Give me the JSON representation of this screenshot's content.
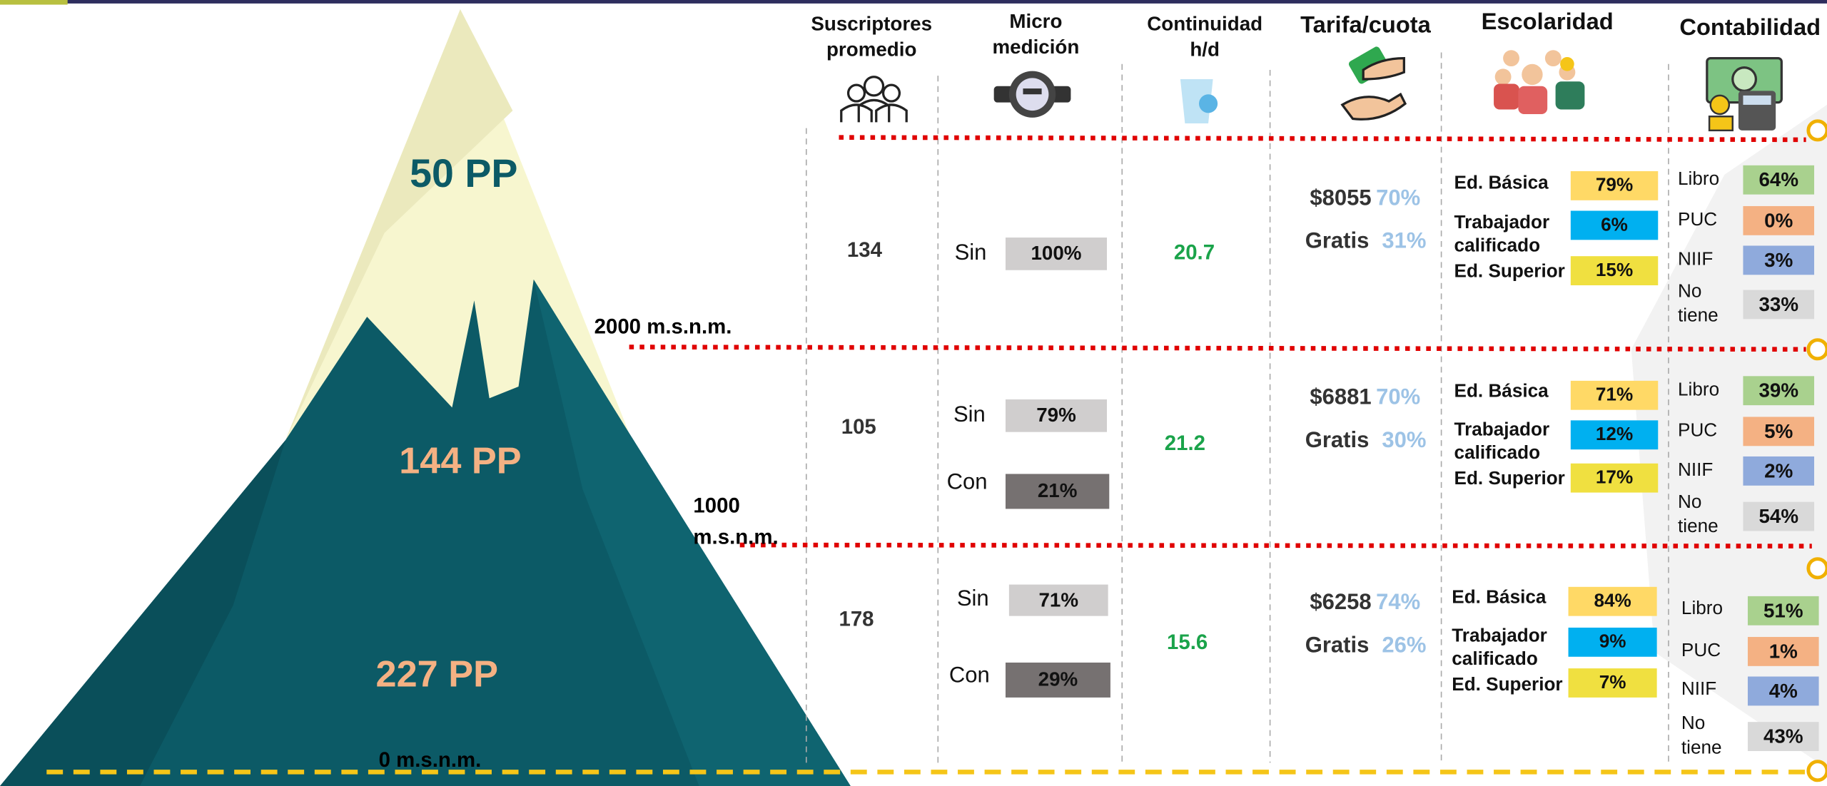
{
  "headers": [
    "Suscriptores promedio",
    "Micro medición",
    "Continuidad h/d",
    "Tarifa/cuota",
    "Escolaridad",
    "Contabilidad"
  ],
  "mountain": {
    "levels": [
      "50 PP",
      "144 PP",
      "227 PP"
    ],
    "altitudes": [
      "2000 m.s.n.m.",
      "1000 m.s.n.m.",
      "0 m.s.n.m."
    ]
  },
  "rows": [
    {
      "subscribers": "134",
      "micro": [
        {
          "label": "Sin",
          "value": "100%"
        }
      ],
      "continuity": "20.7",
      "tariff": [
        {
          "label": "$8055",
          "value": "70%"
        },
        {
          "label": "Gratis",
          "value": "31%"
        }
      ],
      "schooling": [
        {
          "label": "Ed. Básica",
          "value": "79%"
        },
        {
          "label": "Trabajador calificado",
          "value": "6%"
        },
        {
          "label": "Ed. Superior",
          "value": "15%"
        }
      ],
      "accounting": [
        {
          "label": "Libro",
          "value": "64%"
        },
        {
          "label": "PUC",
          "value": "0%"
        },
        {
          "label": "NIIF",
          "value": "3%"
        },
        {
          "label": "No tiene",
          "value": "33%"
        }
      ]
    },
    {
      "subscribers": "105",
      "micro": [
        {
          "label": "Sin",
          "value": "79%"
        },
        {
          "label": "Con",
          "value": "21%"
        }
      ],
      "continuity": "21.2",
      "tariff": [
        {
          "label": "$6881",
          "value": "70%"
        },
        {
          "label": "Gratis",
          "value": "30%"
        }
      ],
      "schooling": [
        {
          "label": "Ed. Básica",
          "value": "71%"
        },
        {
          "label": "Trabajador calificado",
          "value": "12%"
        },
        {
          "label": "Ed. Superior",
          "value": "17%"
        }
      ],
      "accounting": [
        {
          "label": "Libro",
          "value": "39%"
        },
        {
          "label": "PUC",
          "value": "5%"
        },
        {
          "label": "NIIF",
          "value": "2%"
        },
        {
          "label": "No tiene",
          "value": "54%"
        }
      ]
    },
    {
      "subscribers": "178",
      "micro": [
        {
          "label": "Sin",
          "value": "71%"
        },
        {
          "label": "Con",
          "value": "29%"
        }
      ],
      "continuity": "15.6",
      "tariff": [
        {
          "label": "$6258",
          "value": "74%"
        },
        {
          "label": "Gratis",
          "value": "26%"
        }
      ],
      "schooling": [
        {
          "label": "Ed. Básica",
          "value": "84%"
        },
        {
          "label": "Trabajador calificado",
          "value": "9%"
        },
        {
          "label": "Ed. Superior",
          "value": "7%"
        }
      ],
      "accounting": [
        {
          "label": "Libro",
          "value": "51%"
        },
        {
          "label": "PUC",
          "value": "1%"
        },
        {
          "label": "NIIF",
          "value": "4%"
        },
        {
          "label": "No tiene",
          "value": "43%"
        }
      ]
    }
  ]
}
